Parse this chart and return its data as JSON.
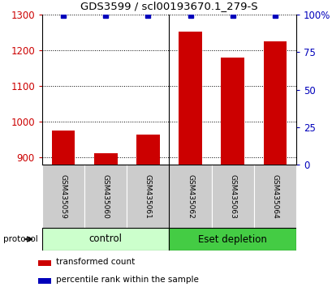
{
  "title": "GDS3599 / scl00193670.1_279-S",
  "samples": [
    "GSM435059",
    "GSM435060",
    "GSM435061",
    "GSM435062",
    "GSM435063",
    "GSM435064"
  ],
  "transformed_counts": [
    975,
    912,
    963,
    1252,
    1180,
    1224
  ],
  "percentile_ranks": [
    99.5,
    99.5,
    99.5,
    99.5,
    99.5,
    99.5
  ],
  "bar_color": "#cc0000",
  "dot_color": "#0000bb",
  "ylim_left": [
    880,
    1300
  ],
  "ylim_right": [
    0,
    100
  ],
  "yticks_left": [
    900,
    1000,
    1100,
    1200,
    1300
  ],
  "yticks_right": [
    0,
    25,
    50,
    75,
    100
  ],
  "ytick_labels_right": [
    "0",
    "25",
    "50",
    "75",
    "100%"
  ],
  "control_label": "control",
  "eset_label": "Eset depletion",
  "protocol_label": "protocol",
  "legend_red_label": "transformed count",
  "legend_blue_label": "percentile rank within the sample",
  "control_bg": "#ccffcc",
  "eset_bg": "#44cc44",
  "sample_box_bg": "#cccccc",
  "bar_width": 0.55,
  "dot_marker_size": 5
}
